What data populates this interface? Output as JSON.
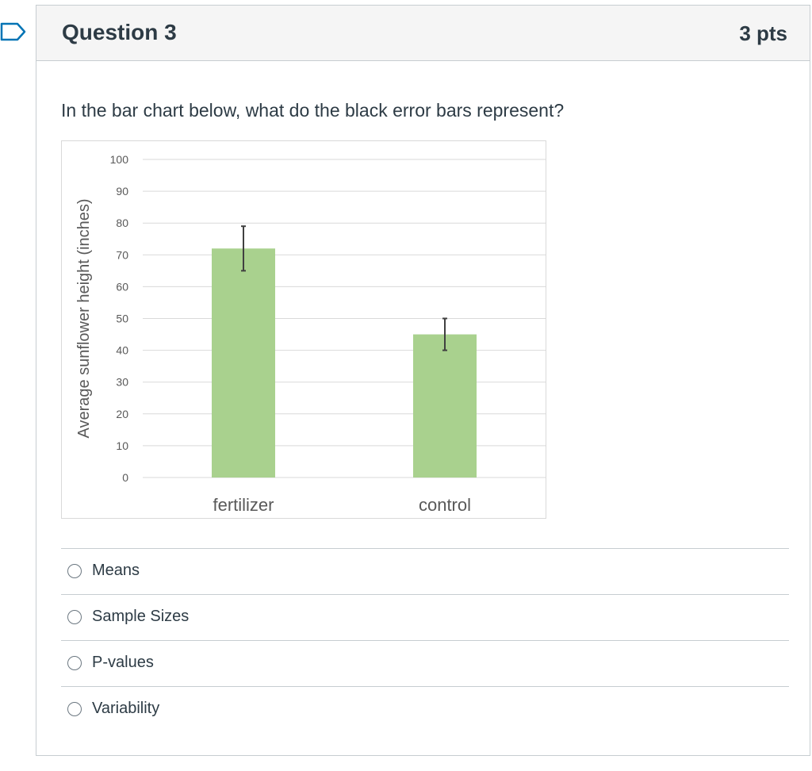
{
  "question": {
    "title": "Question 3",
    "points": "3 pts",
    "prompt": "In the bar chart below, what do the black error bars represent?"
  },
  "chart_data": {
    "type": "bar",
    "categories": [
      "fertilizer",
      "control"
    ],
    "values": [
      72,
      45
    ],
    "error_low": [
      65,
      40
    ],
    "error_high": [
      79,
      50
    ],
    "title": "",
    "xlabel": "",
    "ylabel": "Average sunflower height (inches)",
    "ylim": [
      0,
      100
    ],
    "yticks": [
      0,
      10,
      20,
      30,
      40,
      50,
      60,
      70,
      80,
      90,
      100
    ],
    "grid": true,
    "bar_color": "#a9d18e",
    "error_bar_color": "#404040"
  },
  "answers": [
    {
      "label": "Means"
    },
    {
      "label": "Sample Sizes"
    },
    {
      "label": "P-values"
    },
    {
      "label": "Variability"
    }
  ],
  "colors": {
    "accent": "#2d3b45",
    "flag_outline": "#0374b5"
  }
}
